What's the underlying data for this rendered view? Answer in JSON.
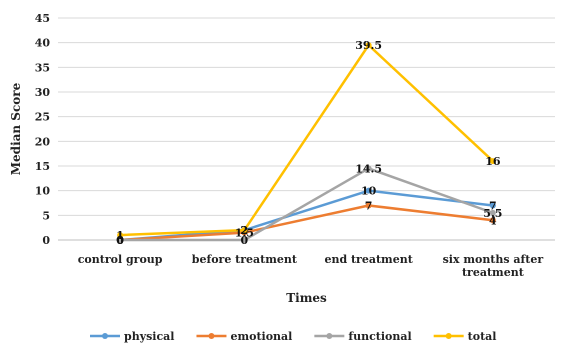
{
  "chart_data": {
    "type": "line",
    "categories": [
      "control group",
      "before treatment",
      "end treatment",
      "six months after treatment"
    ],
    "category_lines": [
      [
        "control group"
      ],
      [
        "before treatment"
      ],
      [
        "end treatment"
      ],
      [
        "six months after",
        "treatment"
      ]
    ],
    "xlabel": "Times",
    "ylabel": "Median Score",
    "ylim": [
      0,
      45
    ],
    "yticks": [
      0,
      5,
      10,
      15,
      20,
      25,
      30,
      35,
      40,
      45
    ],
    "grid": true,
    "legend": "bottom",
    "series": [
      {
        "name": "physical",
        "color": "#5B9BD5",
        "values": [
          0,
          2,
          10,
          7
        ]
      },
      {
        "name": "emotional",
        "color": "#ED7D31",
        "values": [
          0,
          1.5,
          7,
          4
        ]
      },
      {
        "name": "functional",
        "color": "#A5A5A5",
        "values": [
          0,
          0,
          14.5,
          5.5
        ]
      },
      {
        "name": "total",
        "color": "#FFC000",
        "values": [
          1,
          2,
          39.5,
          16
        ]
      }
    ]
  }
}
